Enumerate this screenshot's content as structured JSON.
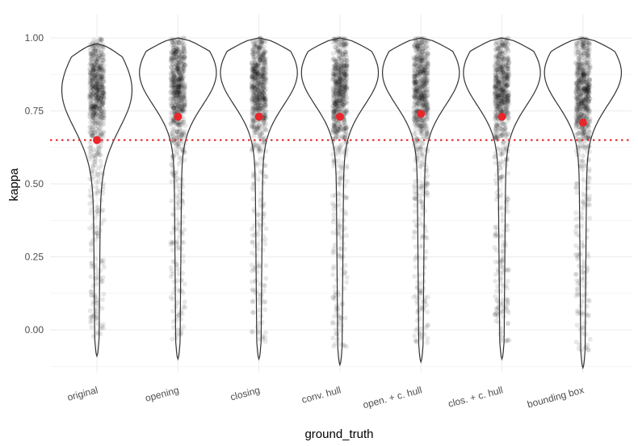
{
  "chart_data": {
    "type": "violin",
    "xlabel": "ground_truth",
    "ylabel": "kappa",
    "categories": [
      "original",
      "opening",
      "closing",
      "conv. hull",
      "open. + c. hull",
      "clos. + c. hull",
      "bounding box"
    ],
    "yticks": [
      "0.00",
      "0.25",
      "0.50",
      "0.75",
      "1.00"
    ],
    "ylim": [
      -0.13,
      1.01
    ],
    "means": [
      0.65,
      0.73,
      0.73,
      0.73,
      0.74,
      0.73,
      0.71
    ],
    "reference_line": 0.65,
    "violin_range": [
      [
        -0.09,
        0.98
      ],
      [
        -0.1,
        1.0
      ],
      [
        -0.1,
        1.0
      ],
      [
        -0.12,
        1.0
      ],
      [
        -0.11,
        1.0
      ],
      [
        -0.1,
        1.0
      ],
      [
        -0.13,
        1.0
      ]
    ],
    "grid": true,
    "jitter_points": true,
    "colors": {
      "mean": "#e8262b",
      "reference_line": "#e8262b",
      "points": "#000000",
      "violin_outline": "#333333",
      "grid": "#ebebeb"
    }
  }
}
